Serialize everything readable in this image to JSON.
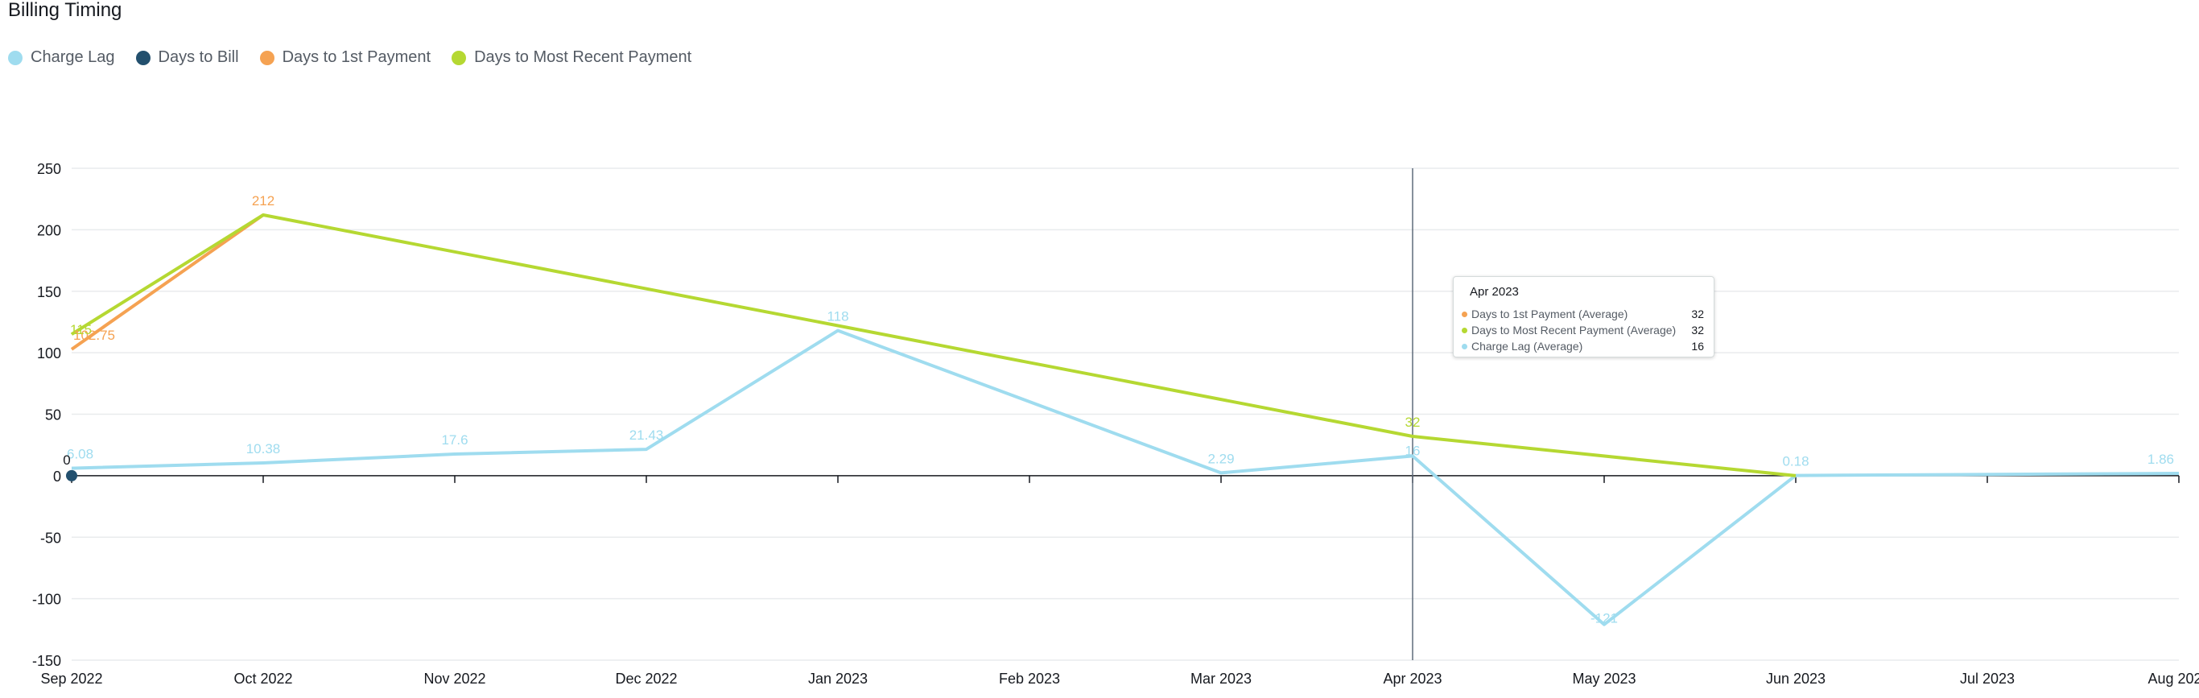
{
  "chart_data": {
    "type": "line",
    "title": "Billing Timing",
    "xlabel": "",
    "ylabel": "",
    "x": [
      "Sep 2022",
      "Oct 2022",
      "Nov 2022",
      "Dec 2022",
      "Jan 2023",
      "Feb 2023",
      "Mar 2023",
      "Apr 2023",
      "May 2023",
      "Jun 2023",
      "Jul 2023",
      "Aug 2023"
    ],
    "ylim": [
      -150,
      250
    ],
    "yticks": [
      -150,
      -100,
      -50,
      0,
      50,
      100,
      150,
      200,
      250
    ],
    "grid": true,
    "legend_position": "top-left",
    "series": [
      {
        "name": "Charge Lag",
        "color": "#9fdcef",
        "points": [
          {
            "x": "Sep 2022",
            "y": 6.08,
            "label": "6.08"
          },
          {
            "x": "Oct 2022",
            "y": 10.38,
            "label": "10.38"
          },
          {
            "x": "Nov 2022",
            "y": 17.6,
            "label": "17.6"
          },
          {
            "x": "Dec 2022",
            "y": 21.43,
            "label": "21.43"
          },
          {
            "x": "Jan 2023",
            "y": 118,
            "label": "118"
          },
          {
            "x": "Mar 2023",
            "y": 2.29,
            "label": "2.29"
          },
          {
            "x": "Apr 2023",
            "y": 16,
            "label": "16"
          },
          {
            "x": "May 2023",
            "y": -121,
            "label": "-121"
          },
          {
            "x": "Jun 2023",
            "y": 0.18,
            "label": "0.18"
          },
          {
            "x": "Aug 2023",
            "y": 1.86,
            "label": "1.86"
          }
        ]
      },
      {
        "name": "Days to Bill",
        "color": "#23506e",
        "points": [
          {
            "x": "Sep 2022",
            "y": 0,
            "label": "0"
          }
        ]
      },
      {
        "name": "Days to 1st Payment",
        "color": "#f5a252",
        "points": [
          {
            "x": "Sep 2022",
            "y": 102.75,
            "label": "102.75"
          },
          {
            "x": "Oct 2022",
            "y": 212,
            "label": "212"
          }
        ]
      },
      {
        "name": "Days to Most Recent Payment",
        "color": "#b5d832",
        "points": [
          {
            "x": "Sep 2022",
            "y": 115,
            "label": "115"
          },
          {
            "x": "Oct 2022",
            "y": 212,
            "label": ""
          },
          {
            "x": "Apr 2023",
            "y": 32,
            "label": "32"
          },
          {
            "x": "Jun 2023",
            "y": 0,
            "label": ""
          }
        ]
      }
    ],
    "crosshair_x": "Apr 2023",
    "tooltip": {
      "title": "Apr 2023",
      "rows": [
        {
          "label": "Days to 1st Payment (Average)",
          "value": "32",
          "color": "#f5a252"
        },
        {
          "label": "Days to Most Recent Payment (Average)",
          "value": "32",
          "color": "#b5d832"
        },
        {
          "label": "Charge Lag (Average)",
          "value": "16",
          "color": "#9fdcef"
        }
      ]
    }
  }
}
